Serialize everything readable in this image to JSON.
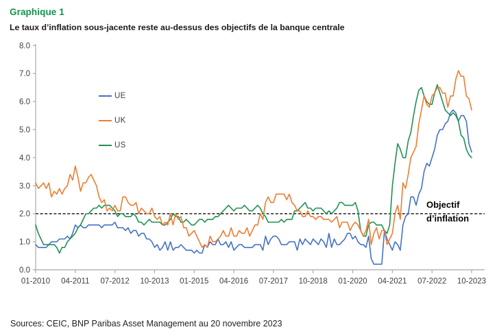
{
  "header": {
    "figure_label": "Graphique 1",
    "title": "Le taux d’inflation sous-jacente reste au-dessus des objectifs de la banque centrale"
  },
  "source": "Sources: CEIC, BNP Paribas Asset Management au 20 novembre 2023",
  "colors": {
    "figure_label_green": "#11914e",
    "axis_gray": "#a9a9a9",
    "tick_text": "#3f3f3f",
    "target_line_black": "#111111",
    "ue_blue": "#4472c4",
    "uk_orange": "#ed7d31",
    "us_green": "#1e9150"
  },
  "chart_data": {
    "type": "line",
    "title": "",
    "xlabel": "",
    "ylabel": "",
    "frequency": "monthly",
    "x_start": "01-2010",
    "x_end": "10-2023",
    "ylim": [
      0.0,
      8.0
    ],
    "grid": false,
    "legend_position": "inside-upper-left",
    "y_ticks": [
      "0.0",
      "1.0",
      "2.0",
      "3.0",
      "4.0",
      "5.0",
      "6.0",
      "7.0",
      "8.0"
    ],
    "x_tick_labels": [
      "01-2010",
      "04-2011",
      "07-2012",
      "10-2013",
      "01-2015",
      "04-2016",
      "07-2017",
      "10-2018",
      "01-2020",
      "04-2021",
      "07-2022",
      "10-2023"
    ],
    "x_tick_month_indices": [
      0,
      15,
      30,
      45,
      60,
      75,
      90,
      105,
      120,
      135,
      150,
      165
    ],
    "target_line": {
      "value": 2.0,
      "label_line1": "Objectif",
      "label_line2": "d’inflation"
    },
    "series": [
      {
        "name": "UE",
        "color": "#4472c4",
        "values": [
          0.9,
          0.8,
          0.8,
          0.8,
          0.8,
          0.9,
          1.0,
          1.0,
          1.0,
          1.1,
          1.1,
          1.1,
          1.2,
          1.1,
          1.3,
          1.6,
          1.5,
          1.6,
          1.5,
          1.5,
          1.6,
          1.6,
          1.6,
          1.6,
          1.6,
          1.5,
          1.6,
          1.6,
          1.6,
          1.6,
          1.7,
          1.5,
          1.5,
          1.5,
          1.4,
          1.5,
          1.3,
          1.4,
          1.4,
          1.2,
          1.3,
          1.3,
          1.1,
          1.1,
          1.0,
          0.8,
          0.9,
          0.7,
          0.8,
          1.0,
          0.7,
          1.0,
          0.7,
          0.8,
          0.8,
          0.9,
          0.8,
          0.7,
          0.7,
          0.7,
          0.6,
          0.7,
          0.6,
          0.6,
          0.9,
          0.8,
          1.0,
          0.9,
          0.9,
          1.1,
          0.9,
          0.9,
          1.0,
          0.8,
          1.0,
          0.7,
          0.8,
          0.9,
          0.9,
          0.8,
          0.8,
          0.8,
          0.8,
          0.9,
          0.9,
          0.9,
          0.7,
          1.2,
          0.9,
          1.1,
          1.2,
          1.2,
          1.1,
          0.9,
          0.9,
          0.9,
          1.0,
          1.0,
          1.0,
          0.7,
          1.1,
          0.9,
          1.1,
          1.0,
          0.9,
          1.1,
          1.0,
          0.9,
          1.1,
          1.0,
          0.8,
          1.3,
          0.8,
          1.1,
          0.9,
          0.9,
          1.0,
          1.1,
          1.3,
          1.3,
          1.1,
          1.2,
          1.0,
          0.9,
          0.9,
          0.8,
          1.2,
          0.4,
          0.2,
          0.2,
          0.2,
          0.2,
          1.4,
          1.1,
          0.9,
          0.7,
          1.0,
          0.9,
          0.7,
          1.6,
          1.9,
          2.0,
          2.6,
          2.6,
          2.3,
          2.7,
          2.9,
          3.5,
          3.8,
          3.7,
          4.0,
          4.3,
          4.8,
          5.0,
          5.0,
          5.2,
          5.3,
          5.6,
          5.7,
          5.6,
          5.3,
          5.5,
          5.5,
          5.3,
          4.5,
          4.2
        ]
      },
      {
        "name": "UK",
        "color": "#ed7d31",
        "values": [
          3.1,
          2.9,
          3.0,
          3.1,
          2.9,
          3.1,
          2.6,
          2.8,
          2.7,
          2.9,
          2.7,
          2.9,
          3.0,
          3.4,
          3.2,
          3.7,
          3.3,
          2.8,
          3.1,
          3.1,
          3.3,
          3.4,
          3.2,
          3.0,
          2.6,
          2.4,
          2.5,
          2.1,
          2.2,
          2.1,
          2.3,
          2.1,
          2.1,
          2.6,
          2.6,
          2.4,
          2.3,
          2.3,
          2.4,
          2.0,
          2.2,
          2.1,
          2.0,
          2.0,
          2.2,
          1.9,
          1.8,
          1.9,
          1.6,
          1.7,
          1.6,
          2.0,
          1.6,
          2.0,
          1.8,
          1.9,
          1.5,
          1.5,
          1.2,
          1.3,
          1.4,
          1.2,
          1.0,
          0.8,
          0.9,
          0.8,
          1.2,
          1.0,
          1.0,
          1.1,
          1.2,
          1.4,
          1.2,
          1.2,
          1.5,
          1.2,
          1.2,
          1.4,
          1.3,
          1.3,
          1.5,
          1.2,
          1.4,
          1.6,
          1.6,
          2.0,
          1.8,
          2.4,
          2.6,
          2.4,
          2.4,
          2.7,
          2.7,
          2.7,
          2.7,
          2.5,
          2.7,
          2.4,
          2.3,
          2.1,
          2.1,
          1.9,
          1.9,
          2.1,
          1.9,
          1.9,
          1.8,
          1.9,
          1.9,
          1.8,
          1.8,
          1.8,
          1.7,
          1.8,
          1.9,
          1.5,
          1.7,
          1.7,
          1.7,
          1.4,
          1.6,
          1.7,
          1.6,
          1.4,
          1.2,
          1.4,
          1.8,
          0.9,
          1.3,
          1.5,
          1.1,
          1.4,
          1.4,
          0.9,
          1.1,
          1.3,
          2.0,
          2.3,
          1.8,
          3.1,
          2.9,
          3.4,
          4.0,
          4.2,
          4.4,
          5.2,
          5.7,
          6.2,
          5.9,
          5.8,
          6.2,
          6.3,
          6.5,
          6.5,
          6.3,
          6.3,
          5.8,
          6.2,
          6.2,
          6.8,
          7.1,
          6.9,
          6.9,
          6.2,
          6.1,
          5.7
        ]
      },
      {
        "name": "US",
        "color": "#1e9150",
        "values": [
          1.6,
          1.3,
          1.1,
          0.9,
          0.9,
          0.9,
          0.9,
          0.9,
          0.8,
          0.6,
          0.8,
          0.8,
          1.0,
          1.1,
          1.2,
          1.3,
          1.5,
          1.6,
          1.8,
          2.0,
          2.0,
          2.1,
          2.2,
          2.2,
          2.3,
          2.2,
          2.3,
          2.3,
          2.3,
          2.2,
          2.1,
          1.9,
          2.0,
          2.0,
          1.9,
          1.9,
          1.9,
          2.0,
          1.9,
          1.7,
          1.7,
          1.6,
          1.7,
          1.8,
          1.7,
          1.7,
          1.7,
          1.7,
          1.6,
          1.6,
          1.7,
          1.8,
          2.0,
          1.9,
          1.9,
          1.7,
          1.7,
          1.8,
          1.7,
          1.6,
          1.6,
          1.7,
          1.8,
          1.8,
          1.7,
          1.8,
          1.8,
          1.8,
          1.9,
          1.9,
          2.0,
          2.1,
          2.2,
          2.3,
          2.2,
          2.1,
          2.2,
          2.2,
          2.2,
          2.3,
          2.2,
          2.1,
          2.1,
          2.2,
          2.3,
          2.2,
          2.0,
          1.9,
          1.7,
          1.7,
          1.7,
          1.7,
          1.7,
          1.8,
          1.7,
          1.8,
          1.8,
          1.8,
          2.1,
          2.1,
          2.2,
          2.3,
          2.4,
          2.2,
          2.2,
          2.1,
          2.2,
          2.2,
          2.2,
          2.1,
          2.0,
          2.1,
          2.0,
          2.1,
          2.2,
          2.4,
          2.4,
          2.3,
          2.3,
          2.3,
          2.3,
          2.4,
          2.1,
          1.4,
          1.2,
          1.2,
          1.6,
          1.7,
          1.7,
          1.6,
          1.6,
          1.6,
          1.4,
          1.3,
          1.6,
          3.0,
          3.8,
          4.5,
          4.3,
          4.0,
          4.0,
          4.6,
          4.9,
          5.5,
          6.0,
          6.4,
          6.5,
          6.2,
          6.0,
          5.9,
          5.9,
          6.3,
          6.6,
          6.3,
          6.0,
          5.7,
          5.6,
          5.5,
          5.6,
          5.5,
          5.3,
          4.8,
          4.7,
          4.3,
          4.1,
          4.0
        ]
      }
    ]
  }
}
